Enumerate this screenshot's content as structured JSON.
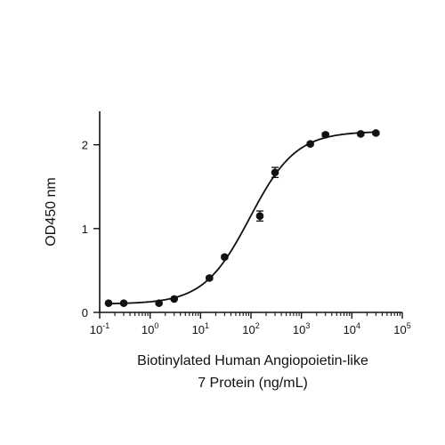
{
  "chart_data": {
    "type": "scatter",
    "title": "",
    "xlabel_lines": [
      "Biotinylated Human Angiopoietin-like",
      "7 Protein (ng/mL)"
    ],
    "ylabel": "OD450 nm",
    "x_scale": "log10",
    "xlim": [
      0.1,
      100000
    ],
    "ylim": [
      0,
      2.4
    ],
    "x_ticks": [
      {
        "base": "10",
        "exp": "-1"
      },
      {
        "base": "10",
        "exp": "0"
      },
      {
        "base": "10",
        "exp": "1"
      },
      {
        "base": "10",
        "exp": "2"
      },
      {
        "base": "10",
        "exp": "3"
      },
      {
        "base": "10",
        "exp": "4"
      },
      {
        "base": "10",
        "exp": "5"
      }
    ],
    "y_ticks": [
      "0",
      "1",
      "2"
    ],
    "y_tick_values": [
      0,
      1,
      2
    ],
    "grid": false,
    "series": [
      {
        "x": [
          0.15,
          0.3,
          1.5,
          3,
          15,
          30,
          150,
          300,
          1500,
          3000,
          15000,
          30000
        ],
        "y": [
          0.11,
          0.11,
          0.11,
          0.16,
          0.41,
          0.66,
          1.15,
          1.67,
          2.01,
          2.12,
          2.13,
          2.14
        ],
        "error": [
          0.01,
          0.01,
          0.01,
          0.01,
          0.02,
          0.02,
          0.06,
          0.06,
          0.02,
          0.02,
          0.02,
          0.02
        ]
      }
    ],
    "fit": {
      "model": "4PL",
      "bottom": 0.1,
      "top": 2.16,
      "ec50": 95,
      "hill": 0.95
    },
    "colors": {
      "marker": "#111111",
      "line": "#111111",
      "axis": "#111111"
    }
  }
}
